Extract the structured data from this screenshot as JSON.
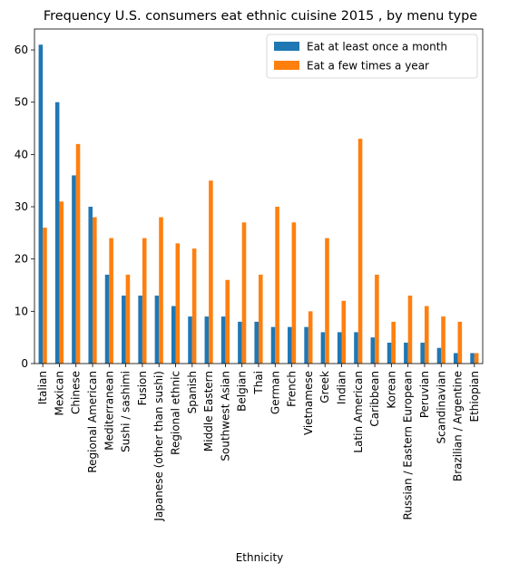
{
  "chart_data": {
    "type": "bar",
    "title": "Frequency U.S. consumers eat ethnic cuisine 2015 , by menu type",
    "xlabel": "Ethnicity",
    "ylabel": "",
    "ylim": [
      0,
      64
    ],
    "yticks": [
      0,
      10,
      20,
      30,
      40,
      50,
      60
    ],
    "grid": false,
    "legend_position": "top-right",
    "categories": [
      "Italian",
      "Mexican",
      "Chinese",
      "Regional American",
      "Mediterranean",
      "Sushi / sashimi",
      "Fusion",
      "Japanese (other than sushi)",
      "Regional ethnic",
      "Spanish",
      "Middle Eastern",
      "Southwest Asian",
      "Belgian",
      "Thai",
      "German",
      "French",
      "Vietnamese",
      "Greek",
      "Indian",
      "Latin American",
      "Caribbean",
      "Korean",
      "Russian / Eastern European",
      "Peruvian",
      "Scandinavian",
      "Brazilian / Argentine",
      "Ethiopian"
    ],
    "series": [
      {
        "name": "Eat at least once a month",
        "color": "#1f77b4",
        "values": [
          61,
          50,
          36,
          30,
          17,
          13,
          13,
          13,
          11,
          9,
          9,
          9,
          8,
          8,
          7,
          7,
          7,
          6,
          6,
          6,
          5,
          4,
          4,
          4,
          3,
          2,
          2
        ]
      },
      {
        "name": "Eat a few times a year",
        "color": "#ff7f0e",
        "values": [
          26,
          31,
          42,
          28,
          24,
          17,
          24,
          28,
          23,
          22,
          35,
          16,
          27,
          17,
          30,
          27,
          10,
          24,
          12,
          43,
          17,
          8,
          13,
          11,
          9,
          8,
          2
        ]
      }
    ]
  }
}
